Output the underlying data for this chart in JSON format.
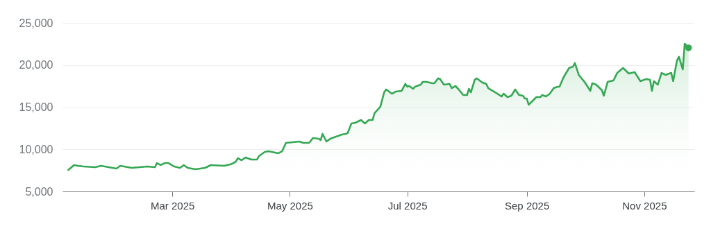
{
  "chart_data": {
    "type": "area",
    "color": "#34a853",
    "grid": "y",
    "x": [
      "2025-01-06",
      "2025-01-09",
      "2025-01-11",
      "2025-01-14",
      "2025-01-20",
      "2025-01-23",
      "2025-01-31",
      "2025-02-02",
      "2025-02-08",
      "2025-02-16",
      "2025-02-20",
      "2025-02-21",
      "2025-02-23",
      "2025-02-25",
      "2025-02-27",
      "2025-03-02",
      "2025-03-05",
      "2025-03-07",
      "2025-03-09",
      "2025-03-13",
      "2025-03-18",
      "2025-03-21",
      "2025-03-28",
      "2025-03-31",
      "2025-04-01",
      "2025-04-03",
      "2025-04-04",
      "2025-04-06",
      "2025-04-08",
      "2025-04-11",
      "2025-04-14",
      "2025-04-15",
      "2025-04-18",
      "2025-04-20",
      "2025-04-25",
      "2025-04-27",
      "2025-04-29",
      "2025-05-06",
      "2025-05-08",
      "2025-05-11",
      "2025-05-13",
      "2025-05-16",
      "2025-05-17",
      "2025-05-18",
      "2025-05-20",
      "2025-05-22",
      "2025-05-26",
      "2025-05-28",
      "2025-05-30",
      "2025-05-31",
      "2025-06-02",
      "2025-06-04",
      "2025-06-07",
      "2025-06-09",
      "2025-06-11",
      "2025-06-13",
      "2025-06-14",
      "2025-06-17",
      "2025-06-19",
      "2025-06-20",
      "2025-06-23",
      "2025-06-25",
      "2025-06-28",
      "2025-06-30",
      "2025-07-01",
      "2025-07-02",
      "2025-07-04",
      "2025-07-05",
      "2025-07-08",
      "2025-07-09",
      "2025-07-11",
      "2025-07-14",
      "2025-07-15",
      "2025-07-17",
      "2025-07-18",
      "2025-07-20",
      "2025-07-23",
      "2025-07-24",
      "2025-07-26",
      "2025-07-28",
      "2025-07-30",
      "2025-08-01",
      "2025-08-02",
      "2025-08-03",
      "2025-08-05",
      "2025-08-06",
      "2025-08-09",
      "2025-08-11",
      "2025-08-12",
      "2025-08-15",
      "2025-08-19",
      "2025-08-20",
      "2025-08-22",
      "2025-08-24",
      "2025-08-26",
      "2025-08-28",
      "2025-08-30",
      "2025-08-31",
      "2025-09-01",
      "2025-09-02",
      "2025-09-06",
      "2025-09-08",
      "2025-09-09",
      "2025-09-11",
      "2025-09-13",
      "2025-09-15",
      "2025-09-17",
      "2025-09-18",
      "2025-09-20",
      "2025-09-23",
      "2025-09-25",
      "2025-09-26",
      "2025-09-28",
      "2025-10-01",
      "2025-10-04",
      "2025-10-05",
      "2025-10-07",
      "2025-10-10",
      "2025-10-11",
      "2025-10-13",
      "2025-10-16",
      "2025-10-18",
      "2025-10-21",
      "2025-10-24",
      "2025-10-27",
      "2025-10-30",
      "2025-11-02",
      "2025-11-04",
      "2025-11-05",
      "2025-11-06",
      "2025-11-08",
      "2025-11-10",
      "2025-11-12",
      "2025-11-15",
      "2025-11-16",
      "2025-11-18",
      "2025-11-19",
      "2025-11-21",
      "2025-11-22",
      "2025-11-24"
    ],
    "values": [
      7550,
      8130,
      8050,
      7960,
      7880,
      8050,
      7720,
      8050,
      7800,
      7960,
      7880,
      8370,
      8130,
      8370,
      8370,
      7960,
      7800,
      8130,
      7800,
      7630,
      7800,
      8130,
      8050,
      8210,
      8290,
      8540,
      8950,
      8700,
      9030,
      8790,
      8790,
      9200,
      9690,
      9770,
      9530,
      9770,
      10760,
      10930,
      10760,
      10760,
      11340,
      11250,
      11090,
      11830,
      10930,
      11250,
      11580,
      11750,
      11830,
      11910,
      13070,
      13150,
      13480,
      13070,
      13480,
      13480,
      14300,
      15050,
      16770,
      17100,
      16600,
      16850,
      16930,
      17760,
      17430,
      17510,
      17180,
      17430,
      17670,
      18000,
      18000,
      17840,
      17840,
      18420,
      18330,
      17670,
      17760,
      17260,
      17510,
      17020,
      16440,
      16440,
      17180,
      16770,
      18250,
      18420,
      17920,
      17760,
      17260,
      16850,
      16270,
      16600,
      16190,
      16360,
      17100,
      16440,
      16360,
      16030,
      16030,
      15290,
      16190,
      16190,
      16440,
      16270,
      16600,
      17260,
      17430,
      17430,
      18500,
      19650,
      19810,
      20230,
      18830,
      18000,
      16930,
      17840,
      17670,
      17020,
      16360,
      18000,
      18170,
      19070,
      19650,
      18990,
      19160,
      18090,
      18330,
      18250,
      16930,
      18090,
      17670,
      19070,
      18830,
      19070,
      18090,
      20550,
      20970,
      19480,
      22530,
      22040
    ],
    "xlim": [
      "2025-01-03",
      "2025-11-27"
    ],
    "xticks": [
      {
        "value": "2025-03-01",
        "label": "Mar 2025"
      },
      {
        "value": "2025-05-01",
        "label": "May 2025"
      },
      {
        "value": "2025-07-01",
        "label": "Jul 2025"
      },
      {
        "value": "2025-09-01",
        "label": "Sep 2025"
      },
      {
        "value": "2025-11-01",
        "label": "Nov 2025"
      }
    ],
    "ylim": [
      5000,
      25000
    ],
    "yticks": [
      {
        "value": 5000,
        "label": "5,000"
      },
      {
        "value": 10000,
        "label": "10,000"
      },
      {
        "value": 15000,
        "label": "15,000"
      },
      {
        "value": 20000,
        "label": "20,000"
      },
      {
        "value": 25000,
        "label": "25,000"
      }
    ]
  }
}
